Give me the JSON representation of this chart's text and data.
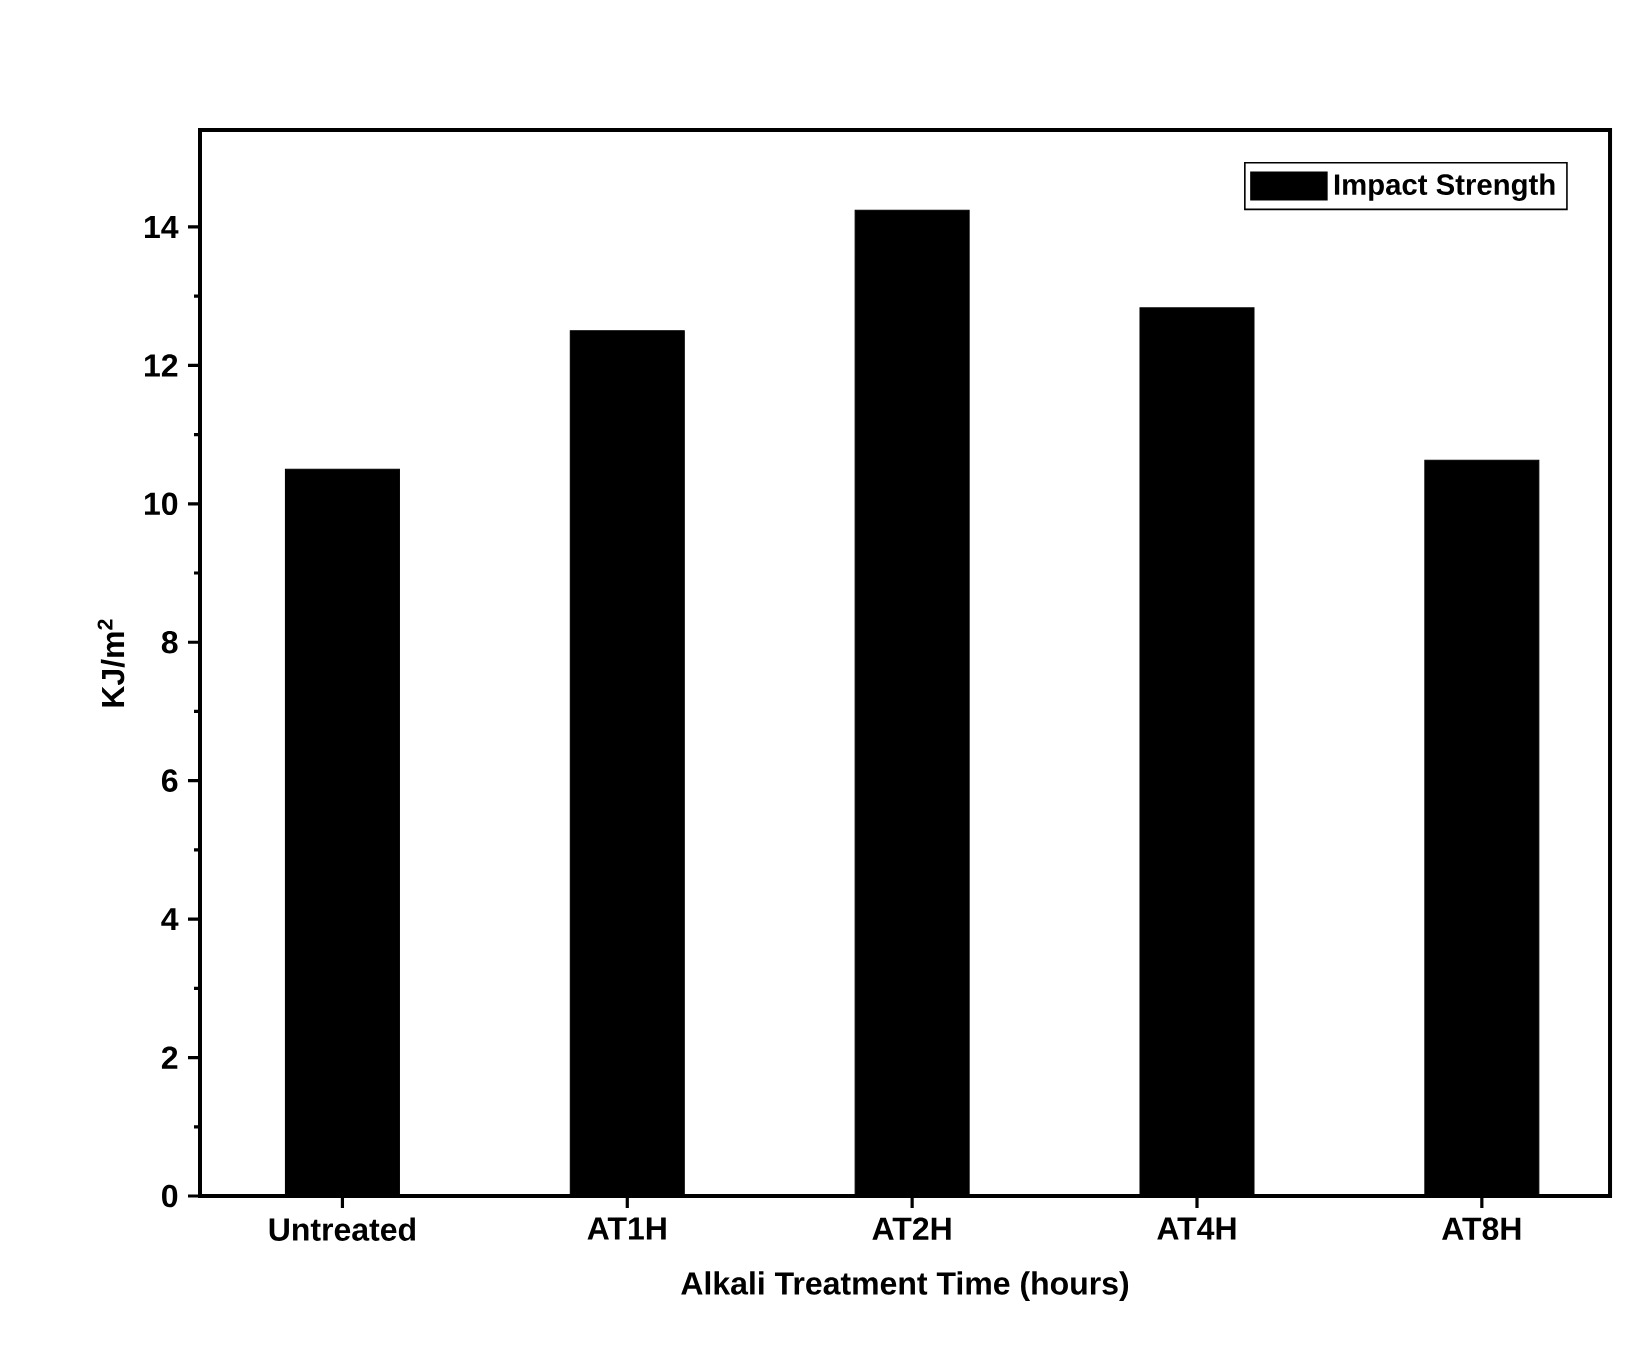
{
  "chart_data": {
    "type": "bar",
    "xlabel": "Alkali Treatment Time (hours)",
    "ylabel": "KJ/m$^{2}$",
    "categories": [
      "Untreated",
      "AT1H",
      "AT2H",
      "AT4H",
      "AT8H"
    ],
    "series": [
      {
        "name": "Impact Strength",
        "color": "#000000",
        "values": [
          10.5,
          12.5,
          14.24,
          12.83,
          10.63
        ]
      }
    ],
    "ylim": [
      0,
      15.4
    ],
    "yticks": [
      0,
      2,
      4,
      6,
      8,
      10,
      12,
      14
    ],
    "legend": "top right",
    "grid": false
  }
}
